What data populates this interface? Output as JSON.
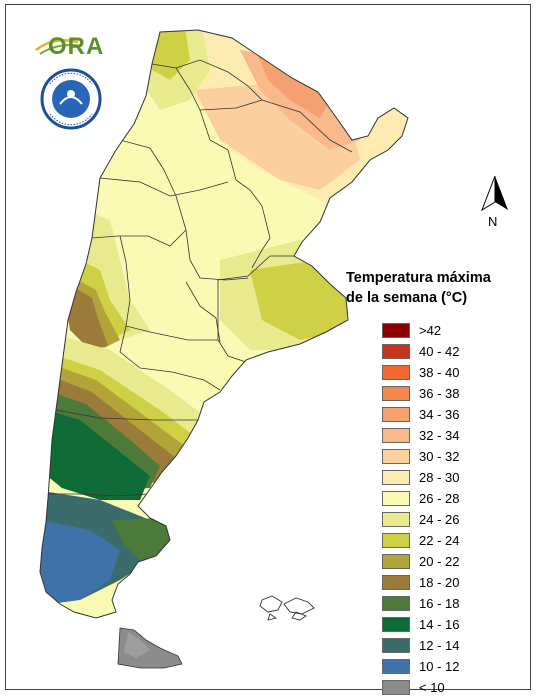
{
  "header": {
    "logo_text": "ORA",
    "seal_text": "SERVICIO METEOROLÓGICO NACIONAL · ARGENTINA"
  },
  "north_arrow": {
    "label": "N"
  },
  "legend": {
    "title_line1": "Temperatura máxima",
    "title_line2": "de la semana (°C)",
    "items": [
      {
        "label": ">42",
        "color": "#8b0000"
      },
      {
        "label": "40 - 42",
        "color": "#c8321e"
      },
      {
        "label": "38 - 40",
        "color": "#f06a34"
      },
      {
        "label": "36 - 38",
        "color": "#f4874c"
      },
      {
        "label": "34 - 36",
        "color": "#f5a071"
      },
      {
        "label": "32 - 34",
        "color": "#f9b98a"
      },
      {
        "label": "30 - 32",
        "color": "#fbd09e"
      },
      {
        "label": "28 - 30",
        "color": "#fdebb2"
      },
      {
        "label": "26 - 28",
        "color": "#fbfab4"
      },
      {
        "label": "24 - 26",
        "color": "#e9ea8e"
      },
      {
        "label": "22 - 24",
        "color": "#cfd046"
      },
      {
        "label": "20 - 22",
        "color": "#b3a43a"
      },
      {
        "label": "18 - 20",
        "color": "#9b7b3a"
      },
      {
        "label": "16 - 18",
        "color": "#4d7a3a"
      },
      {
        "label": "14 - 16",
        "color": "#0f6b36"
      },
      {
        "label": "12 - 14",
        "color": "#3b6b6b"
      },
      {
        "label": "10 - 12",
        "color": "#3e72a8"
      },
      {
        "label": "< 10",
        "color": "#8c8c8c"
      }
    ]
  }
}
